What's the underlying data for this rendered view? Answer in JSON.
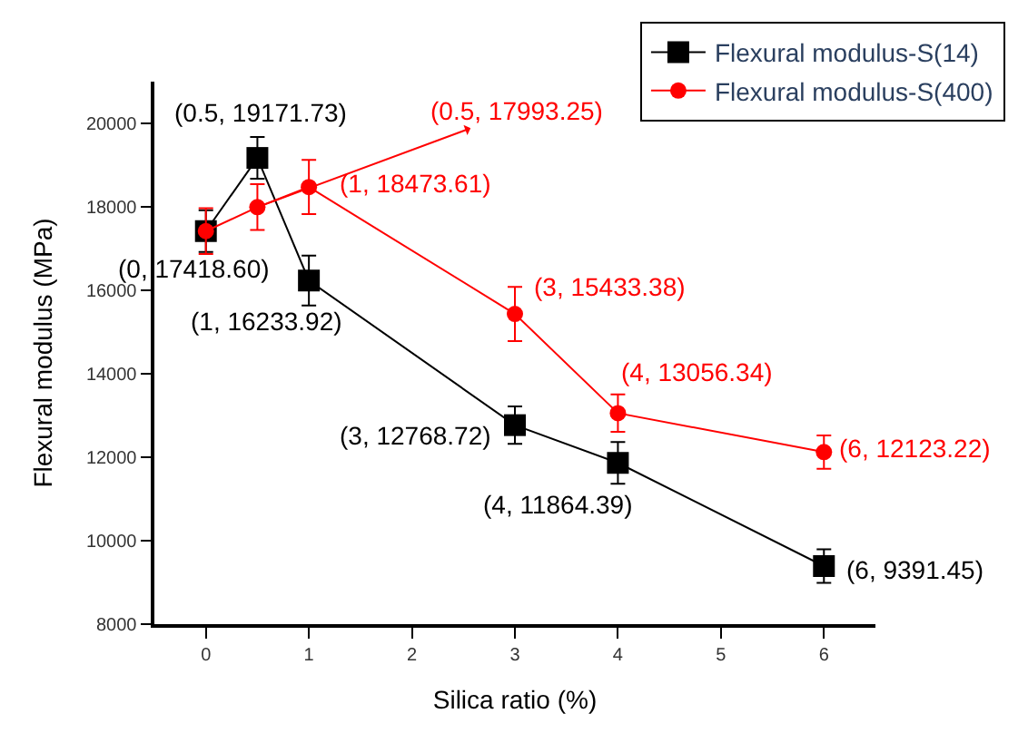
{
  "chart_data": {
    "type": "line",
    "xlabel": "Silica ratio (%)",
    "ylabel": "Flexural modulus (MPa)",
    "xlim": [
      -0.5,
      6.5
    ],
    "xticks": [
      0,
      1,
      2,
      3,
      4,
      5,
      6
    ],
    "ylim": [
      8000,
      21000
    ],
    "yticks": [
      8000,
      10000,
      12000,
      14000,
      16000,
      18000,
      20000
    ],
    "legend": "top right",
    "line_style": "solid",
    "series": [
      {
        "name": "Flexural modulus-S(14)",
        "color": "#000000",
        "marker": "square",
        "x": [
          0,
          0.5,
          1,
          3,
          4,
          6
        ],
        "values": [
          17418.6,
          19171.73,
          16233.92,
          12768.72,
          11864.39,
          9391.45
        ],
        "errors": [
          500,
          500,
          600,
          450,
          500,
          400
        ]
      },
      {
        "name": "Flexural modulus-S(400)",
        "color": "#ff0000",
        "marker": "circle",
        "x": [
          0,
          0.5,
          1,
          3,
          4,
          6
        ],
        "values": [
          17418.6,
          17993.25,
          18473.61,
          15433.38,
          13056.34,
          12123.22
        ],
        "errors": [
          550,
          550,
          650,
          650,
          450,
          400
        ]
      }
    ],
    "annotations": [
      {
        "text": "(0, 17418.60)",
        "x": 0,
        "y": 17418.6
      },
      {
        "text": "(0.5, 19171.73)",
        "x": 0.5,
        "y": 19171.73
      },
      {
        "text": "(1, 16233.92)",
        "x": 1,
        "y": 16233.92
      },
      {
        "text": "(3, 12768.72)",
        "x": 3,
        "y": 12768.72
      },
      {
        "text": "(4, 11864.39)",
        "x": 4,
        "y": 11864.39
      },
      {
        "text": "(6, 9391.45)",
        "x": 6,
        "y": 9391.45
      },
      {
        "text": "(0.5, 17993.25)",
        "x": 0.5,
        "y": 17993.25
      },
      {
        "text": "(1, 18473.61)",
        "x": 1,
        "y": 18473.61
      },
      {
        "text": "(3, 15433.38)",
        "x": 3,
        "y": 15433.38
      },
      {
        "text": "(4, 13056.34)",
        "x": 4,
        "y": 13056.34
      },
      {
        "text": "(6, 12123.22)",
        "x": 6,
        "y": 12123.22
      }
    ]
  }
}
